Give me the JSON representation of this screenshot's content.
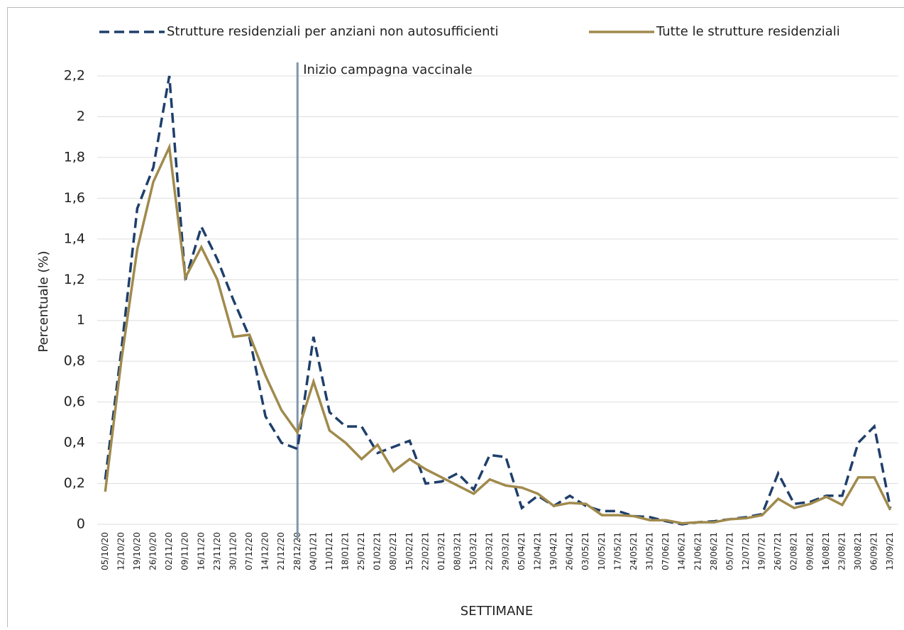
{
  "chart_data": {
    "type": "line",
    "x_label": "SETTIMANE",
    "y_label": "Percentuale (%)",
    "annotation": {
      "text": "Inizio campagna vaccinale",
      "category": "28/12/20",
      "color": "#7f95ad"
    },
    "categories": [
      "05/10/20",
      "12/10/20",
      "19/10/20",
      "26/10/20",
      "02/11/20",
      "09/11/20",
      "16/11/20",
      "23/11/20",
      "30/11/20",
      "07/12/20",
      "14/12/20",
      "21/12/20",
      "28/12/20",
      "04/01/21",
      "11/01/21",
      "18/01/21",
      "25/01/21",
      "01/02/21",
      "08/02/21",
      "15/02/21",
      "22/02/21",
      "01/03/21",
      "08/03/21",
      "15/03/21",
      "22/03/21",
      "29/03/21",
      "05/04/21",
      "12/04/21",
      "19/04/21",
      "26/04/21",
      "03/05/21",
      "10/05/21",
      "17/05/21",
      "24/05/21",
      "31/05/21",
      "07/06/21",
      "14/06/21",
      "21/06/21",
      "28/06/21",
      "05/07/21",
      "12/07/21",
      "19/07/21",
      "26/07/21",
      "02/08/21",
      "09/08/21",
      "16/08/21",
      "23/08/21",
      "30/08/21",
      "06/09/21",
      "13/09/21"
    ],
    "series": [
      {
        "name": "Strutture residenziali per anziani non autosufficienti",
        "color": "#1f3f6b",
        "dashed": true,
        "values": [
          0.22,
          0.85,
          1.55,
          1.75,
          2.2,
          1.2,
          1.46,
          1.3,
          1.1,
          0.92,
          0.53,
          0.4,
          0.37,
          0.92,
          0.55,
          0.48,
          0.48,
          0.35,
          0.38,
          0.41,
          0.2,
          0.21,
          0.25,
          0.17,
          0.34,
          0.33,
          0.08,
          0.14,
          0.09,
          0.14,
          0.09,
          0.065,
          0.065,
          0.04,
          0.035,
          0.015,
          0,
          0.01,
          0.015,
          0.025,
          0.035,
          0.05,
          0.25,
          0.1,
          0.11,
          0.14,
          0.14,
          0.4,
          0.48,
          0.08
        ]
      },
      {
        "name": "Tutte le strutture residenziali",
        "color": "#a08a4c",
        "dashed": false,
        "values": [
          0.16,
          0.8,
          1.35,
          1.68,
          1.85,
          1.21,
          1.36,
          1.2,
          0.92,
          0.93,
          0.73,
          0.56,
          0.45,
          0.7,
          0.46,
          0.4,
          0.32,
          0.39,
          0.26,
          0.32,
          0.27,
          0.23,
          0.19,
          0.15,
          0.22,
          0.19,
          0.18,
          0.15,
          0.09,
          0.105,
          0.1,
          0.045,
          0.045,
          0.04,
          0.02,
          0.02,
          0.005,
          0.01,
          0.01,
          0.025,
          0.03,
          0.045,
          0.125,
          0.08,
          0.1,
          0.135,
          0.095,
          0.23,
          0.23,
          0.07
        ]
      }
    ],
    "ylim": [
      0,
      2.2
    ],
    "yticks": [
      0,
      {
        "value": 0.2,
        "label": "0,2"
      },
      {
        "value": 0.4,
        "label": "0,4"
      },
      {
        "value": 0.6,
        "label": "0,6"
      },
      {
        "value": 0.8,
        "label": "0,8"
      },
      1,
      {
        "value": 1.2,
        "label": "1,2"
      },
      {
        "value": 1.4,
        "label": "1,4"
      },
      {
        "value": 1.6,
        "label": "1,6"
      },
      {
        "value": 1.8,
        "label": "1,8"
      },
      2,
      {
        "value": 2.2,
        "label": "2,2"
      }
    ],
    "grid": true
  }
}
